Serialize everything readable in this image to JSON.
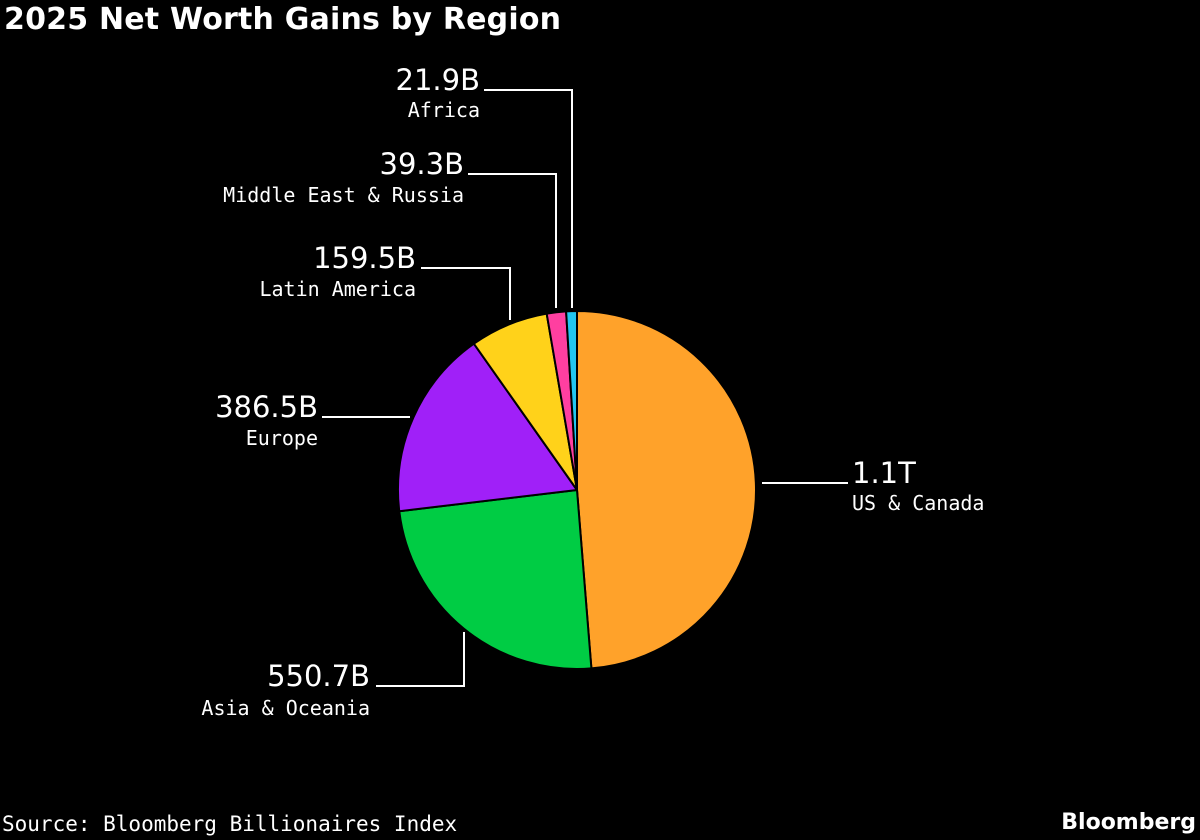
{
  "chart_data": {
    "type": "pie",
    "title": "2025 Net Worth Gains by Region",
    "source": "Source: Bloomberg Billionaires Index",
    "brand": "Bloomberg",
    "slices": [
      {
        "name": "US & Canada",
        "label": "1.1T",
        "value": 1100,
        "color": "#FFA22A"
      },
      {
        "name": "Asia & Oceania",
        "label": "550.7B",
        "value": 550.7,
        "color": "#00CC44"
      },
      {
        "name": "Europe",
        "label": "386.5B",
        "value": 386.5,
        "color": "#A020F8"
      },
      {
        "name": "Latin America",
        "label": "159.5B",
        "value": 159.5,
        "color": "#FFD21A"
      },
      {
        "name": "Middle East & Russia",
        "label": "39.3B",
        "value": 39.3,
        "color": "#FF3FA0"
      },
      {
        "name": "Africa",
        "label": "21.9B",
        "value": 21.9,
        "color": "#22C6F0"
      }
    ],
    "unit": "USD billions",
    "start_angle": "12 o'clock",
    "direction": "clockwise",
    "legend": "none",
    "background": "#000000",
    "label_color": "#FFFFFF",
    "leader_color": "#FFFFFF"
  }
}
